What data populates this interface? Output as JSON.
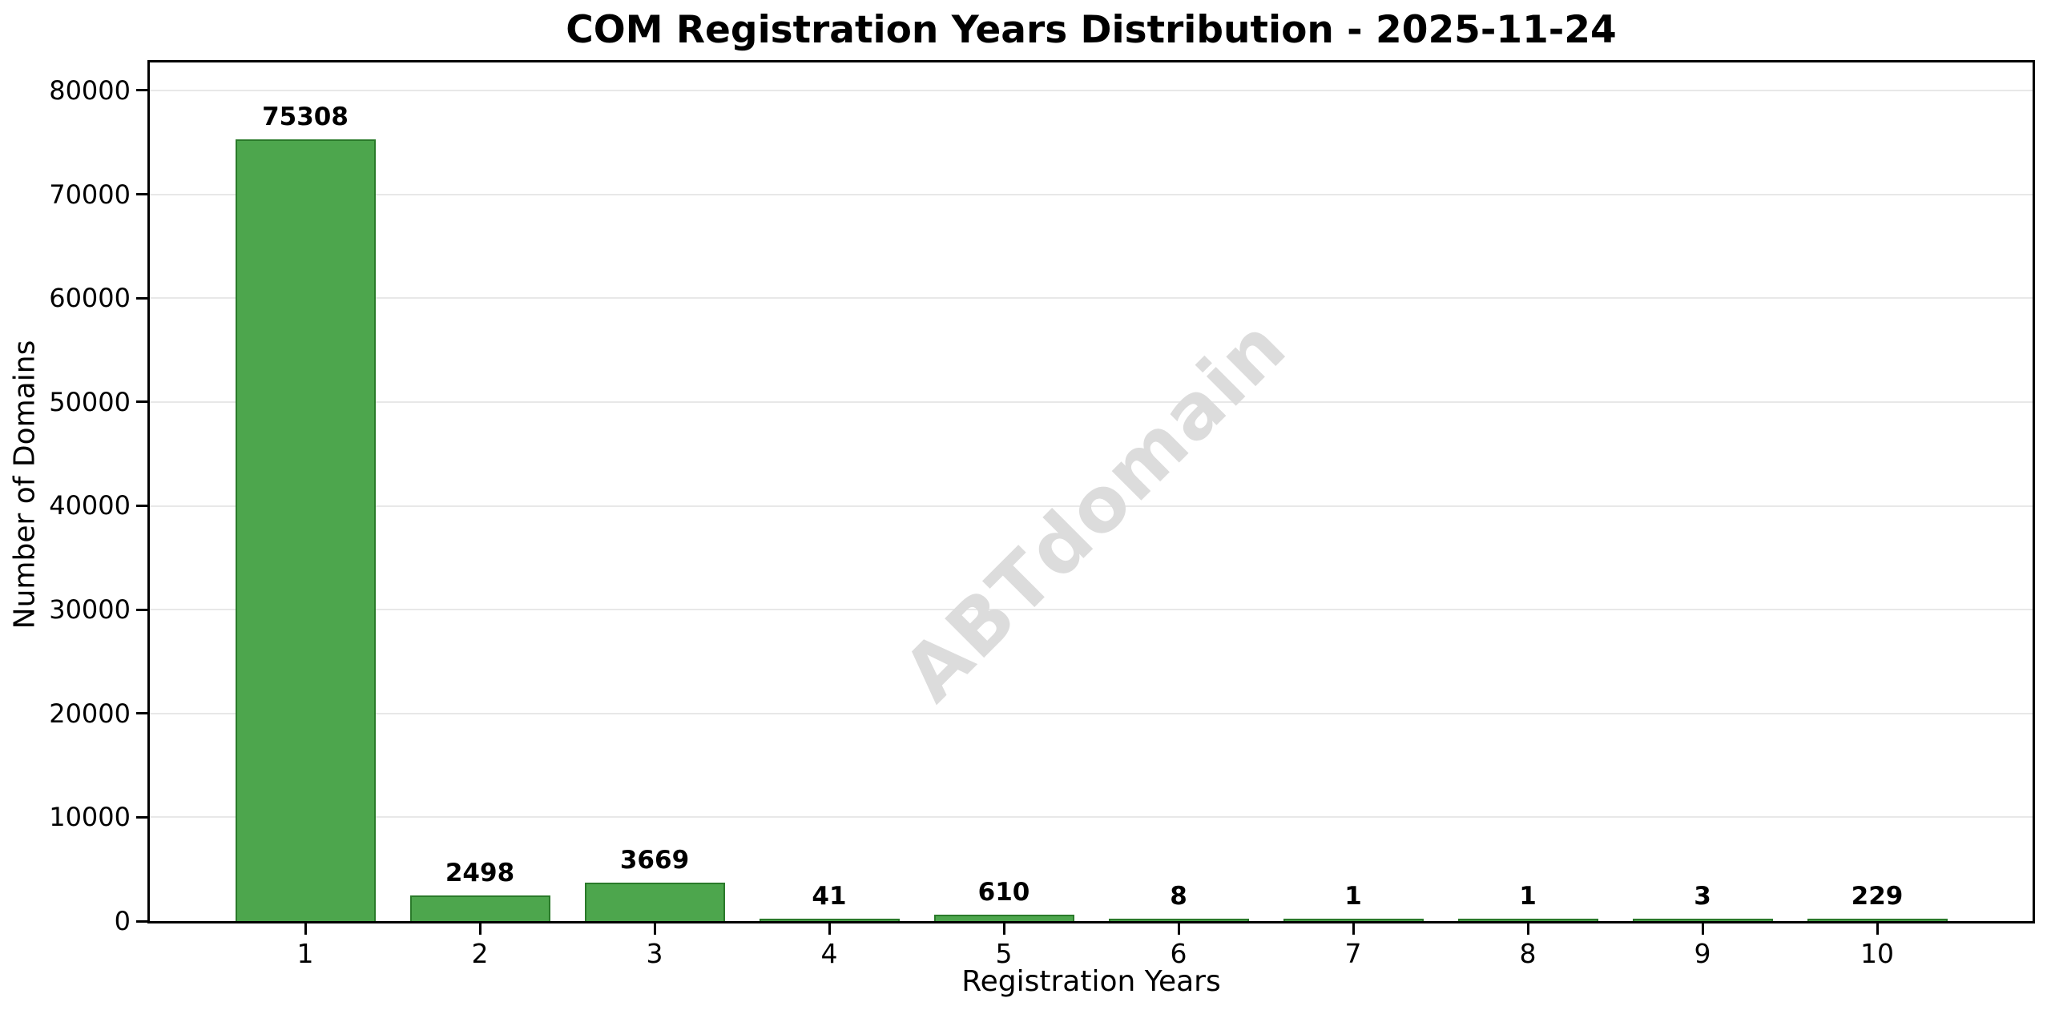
{
  "chart_data": {
    "type": "bar",
    "title": "COM Registration Years Distribution - 2025-11-24",
    "xlabel": "Registration Years",
    "ylabel": "Number of Domains",
    "categories": [
      "1",
      "2",
      "3",
      "4",
      "5",
      "6",
      "7",
      "8",
      "9",
      "10"
    ],
    "values": [
      75308,
      2498,
      3669,
      41,
      610,
      8,
      1,
      1,
      3,
      229
    ],
    "value_labels": [
      "75308",
      "2498",
      "3669",
      "41",
      "610",
      "8",
      "1",
      "1",
      "3",
      "229"
    ],
    "ylim": [
      0,
      82700
    ],
    "yticks": [
      0,
      10000,
      20000,
      30000,
      40000,
      50000,
      60000,
      70000,
      80000
    ],
    "ytick_labels": [
      "0",
      "10000",
      "20000",
      "30000",
      "40000",
      "50000",
      "60000",
      "70000",
      "80000"
    ],
    "grid": true,
    "legend": "none",
    "bar_color": "#4da64d",
    "bar_edge_color": "#2a7a2a",
    "gridline_color": "#e8e8e8",
    "watermark": "ABTdomain"
  }
}
